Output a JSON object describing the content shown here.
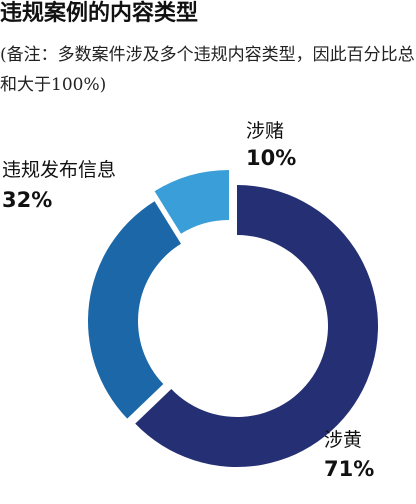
{
  "chart_data": {
    "type": "pie",
    "title": "违规案例的内容类型",
    "subtitle": "(备注：多数案件涉及多个违规内容类型，因此百分比总和大于100%)",
    "donut": true,
    "slices": [
      {
        "label": "涉黄",
        "value": 71,
        "value_label": "71%",
        "color": "#253074"
      },
      {
        "label": "违规发布信息",
        "value": 32,
        "value_label": "32%",
        "color": "#1b67a8"
      },
      {
        "label": "涉赌",
        "value": 10,
        "value_label": "10%",
        "color": "#3a9fd8"
      }
    ]
  }
}
